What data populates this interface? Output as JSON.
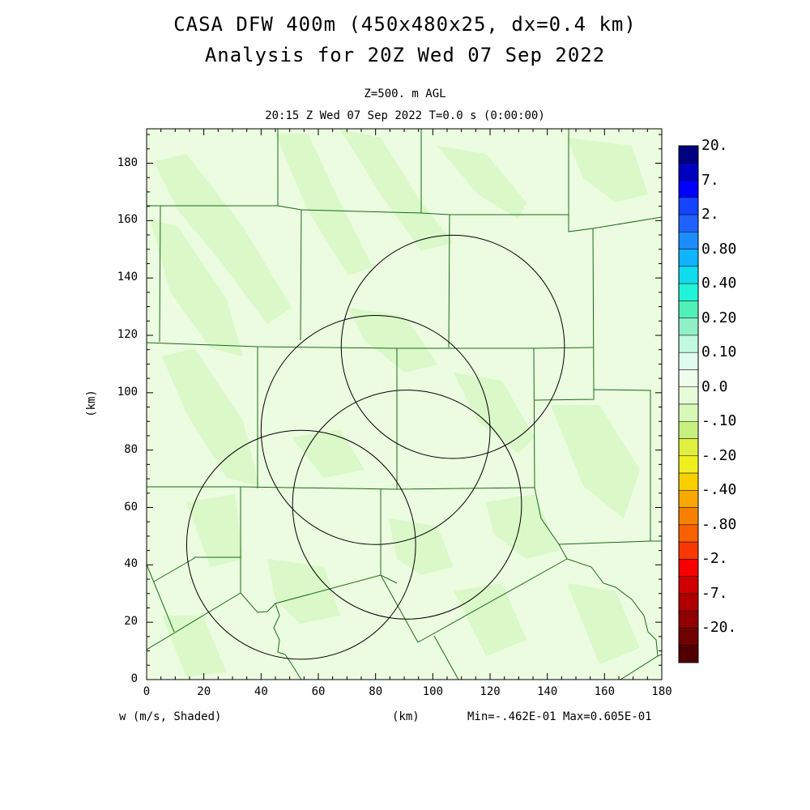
{
  "header": {
    "title_line1": "CASA DFW 400m (450x480x25, dx=0.4 km)",
    "title_line2": "Analysis for 20Z Wed 07 Sep 2022",
    "level": "Z=500. m AGL",
    "valid_time": "20:15 Z Wed 07 Sep 2022   T=0.0 s (0:00:00)"
  },
  "axes": {
    "xlabel": "(km)",
    "ylabel": "(km)",
    "xticks": [
      "0",
      "20",
      "40",
      "60",
      "80",
      "100",
      "120",
      "140",
      "160",
      "180"
    ],
    "yticks": [
      "0",
      "20",
      "40",
      "60",
      "80",
      "100",
      "120",
      "140",
      "160",
      "180"
    ],
    "xmax_km": 180,
    "ymax_km": 192
  },
  "footer": {
    "field_label": "w (m/s, Shaded)",
    "stats": "Min=-.462E-01 Max=0.605E-01"
  },
  "colorbar": {
    "labels": [
      "20.",
      "7.",
      "2.",
      "0.80",
      "0.40",
      "0.20",
      "0.10",
      "0.0",
      "-.10",
      "-.20",
      "-.40",
      "-.80",
      "-2.",
      "-7.",
      "-20."
    ],
    "colors": [
      "#000080",
      "#0000c0",
      "#0000ff",
      "#1444ff",
      "#2060ff",
      "#1c8cff",
      "#10b4ff",
      "#10dcf0",
      "#20f4d8",
      "#50f0b8",
      "#90f0c8",
      "#c0f8e0",
      "#e0fcf0",
      "#f0fcec",
      "#e6fcd8",
      "#d8f8b8",
      "#c8f080",
      "#e0f040",
      "#f0f020",
      "#f8d000",
      "#f8a800",
      "#f88000",
      "#f86000",
      "#f83800",
      "#f80000",
      "#d00000",
      "#b00000",
      "#900000",
      "#700000",
      "#500000"
    ]
  },
  "map": {
    "background_color": "#ecfce0",
    "shade_color": "#daf8c8",
    "radar_rings_km": [
      {
        "x": 107,
        "y": 116,
        "r": 39
      },
      {
        "x": 80,
        "y": 87,
        "r": 40
      },
      {
        "x": 91,
        "y": 61,
        "r": 40
      },
      {
        "x": 54,
        "y": 47,
        "r": 40
      }
    ]
  }
}
